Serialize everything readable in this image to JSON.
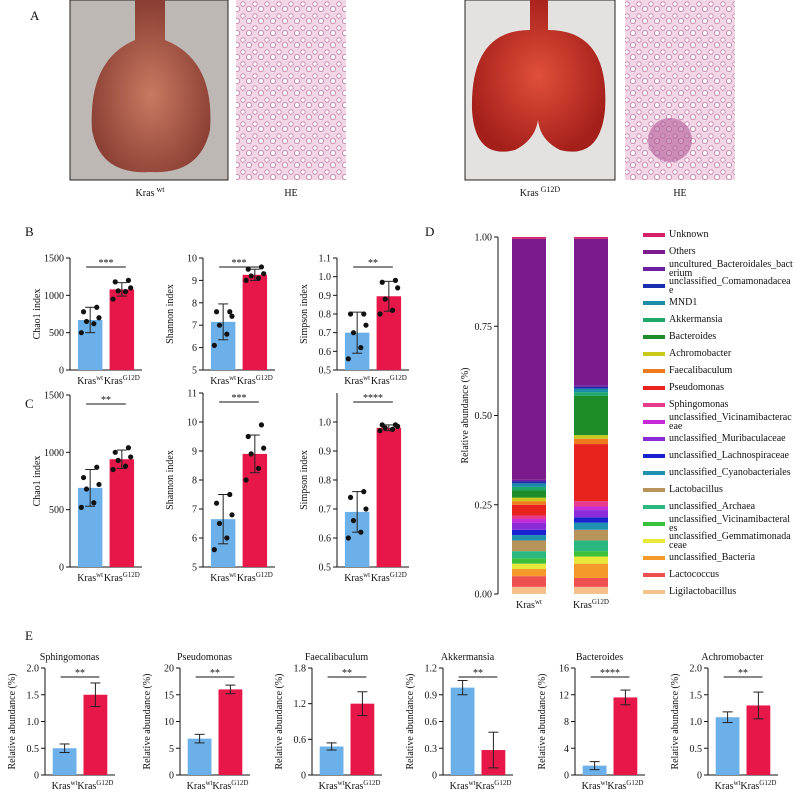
{
  "panels": [
    "A",
    "B",
    "C",
    "D",
    "E"
  ],
  "panel_a": {
    "labels": [
      {
        "name": "Kras",
        "sup": "wt"
      },
      {
        "name": "HE"
      },
      {
        "name": "Kras",
        "sup": "G12D"
      },
      {
        "name": "HE"
      }
    ]
  },
  "chart_data": [
    {
      "type": "bar",
      "ylabel": "Chao1 index",
      "categories": [
        "Kras",
        "Kras"
      ],
      "category_sups": [
        "wt",
        "G12D"
      ],
      "colors": [
        "#6cb0ea",
        "#e8174a"
      ],
      "values": [
        670,
        1080
      ],
      "errors": [
        170,
        90
      ],
      "points": [
        [
          500,
          620,
          650,
          700,
          780,
          840
        ],
        [
          950,
          1050,
          1060,
          1100,
          1180,
          1200
        ]
      ],
      "ylim": [
        0,
        1500
      ],
      "yticks": [
        0,
        500,
        1000,
        1500
      ],
      "significance": "***"
    },
    {
      "type": "bar",
      "ylabel": "Shannon index",
      "categories": [
        "Kras",
        "Kras"
      ],
      "category_sups": [
        "wt",
        "G12D"
      ],
      "colors": [
        "#6cb0ea",
        "#e8174a"
      ],
      "values": [
        7.15,
        9.25
      ],
      "errors": [
        0.8,
        0.25
      ],
      "points": [
        [
          6.1,
          6.6,
          7.0,
          7.4,
          7.6,
          7.6
        ],
        [
          9.0,
          9.1,
          9.2,
          9.3,
          9.5,
          9.6
        ]
      ],
      "ylim": [
        5,
        10
      ],
      "yticks": [
        5,
        6,
        7,
        8,
        9,
        10
      ],
      "significance": "***"
    },
    {
      "type": "bar",
      "ylabel": "Simpson index",
      "categories": [
        "Kras",
        "Kras"
      ],
      "category_sups": [
        "wt",
        "G12D"
      ],
      "colors": [
        "#6cb0ea",
        "#e8174a"
      ],
      "values": [
        0.7,
        0.895
      ],
      "errors": [
        0.11,
        0.08
      ],
      "points": [
        [
          0.56,
          0.62,
          0.7,
          0.74,
          0.8,
          0.8
        ],
        [
          0.8,
          0.82,
          0.88,
          0.94,
          0.97,
          0.98
        ]
      ],
      "ylim": [
        0.5,
        1.1
      ],
      "yticks": [
        0.5,
        0.6,
        0.7,
        0.8,
        0.9,
        {
          "value": 1,
          "label": "1.0"
        },
        1.1
      ],
      "significance": "**"
    },
    {
      "type": "bar",
      "ylabel": "Chao1 index",
      "categories": [
        "Kras",
        "Kras"
      ],
      "category_sups": [
        "wt",
        "G12D"
      ],
      "colors": [
        "#6cb0ea",
        "#e8174a"
      ],
      "values": [
        690,
        940
      ],
      "errors": [
        160,
        80
      ],
      "points": [
        [
          520,
          560,
          680,
          720,
          780,
          870
        ],
        [
          850,
          880,
          930,
          960,
          1000,
          1040
        ]
      ],
      "ylim": [
        0,
        1500
      ],
      "yticks": [
        0,
        500,
        1000,
        1500
      ],
      "significance": "**"
    },
    {
      "type": "bar",
      "ylabel": "Shannon index",
      "categories": [
        "Kras",
        "Kras"
      ],
      "category_sups": [
        "wt",
        "G12D"
      ],
      "colors": [
        "#6cb0ea",
        "#e8174a"
      ],
      "values": [
        6.65,
        8.9
      ],
      "errors": [
        0.85,
        0.65
      ],
      "points": [
        [
          5.6,
          6.0,
          6.5,
          6.8,
          7.2,
          7.5
        ],
        [
          8.0,
          8.4,
          8.9,
          9.1,
          9.5,
          9.9
        ]
      ],
      "ylim": [
        5,
        11
      ],
      "yticks": [
        5,
        6,
        7,
        8,
        9,
        10,
        11
      ],
      "significance": "***"
    },
    {
      "type": "bar",
      "ylabel": "Simpson index",
      "categories": [
        "Kras",
        "Kras"
      ],
      "category_sups": [
        "wt",
        "G12D"
      ],
      "colors": [
        "#6cb0ea",
        "#e8174a"
      ],
      "values": [
        0.69,
        0.98
      ],
      "errors": [
        0.07,
        0.01
      ],
      "points": [
        [
          0.6,
          0.62,
          0.66,
          0.7,
          0.74,
          0.76
        ],
        [
          0.97,
          0.975,
          0.98,
          0.985,
          0.99,
          0.99
        ]
      ],
      "ylim": [
        0.5,
        1.1
      ],
      "yticks": [
        0.5,
        0.6,
        0.7,
        0.8,
        0.9,
        {
          "value": 1,
          "label": "1.0"
        }
      ],
      "significance": "****"
    },
    {
      "type": "bar",
      "title": "Sphingomonas",
      "ylabel": "Relative abundance (%)",
      "categories": [
        "Kras",
        "Kras"
      ],
      "category_sups": [
        "wt",
        "G12D"
      ],
      "colors": [
        "#6cb0ea",
        "#e8174a"
      ],
      "values": [
        0.5,
        1.5
      ],
      "errors": [
        0.08,
        0.22
      ],
      "ylim": [
        0,
        2
      ],
      "yticks": [
        0,
        0.5,
        {
          "value": 1,
          "label": "1.0"
        },
        1.5,
        {
          "value": 2,
          "label": "2.0"
        }
      ],
      "significance": "**"
    },
    {
      "type": "bar",
      "title": "Pseudomonas",
      "ylabel": "Relative abundance (%)",
      "categories": [
        "Kras",
        "Kras"
      ],
      "category_sups": [
        "wt",
        "G12D"
      ],
      "colors": [
        "#6cb0ea",
        "#e8174a"
      ],
      "values": [
        6.8,
        16
      ],
      "errors": [
        0.8,
        0.8
      ],
      "ylim": [
        0,
        20
      ],
      "yticks": [
        0,
        5,
        10,
        15,
        20
      ],
      "significance": "**"
    },
    {
      "type": "bar",
      "title": "Faecalibaculum",
      "ylabel": "Relative abundance (%)",
      "categories": [
        "Kras",
        "Kras"
      ],
      "category_sups": [
        "wt",
        "G12D"
      ],
      "colors": [
        "#6cb0ea",
        "#e8174a"
      ],
      "values": [
        0.48,
        1.2
      ],
      "errors": [
        0.06,
        0.2
      ],
      "ylim": [
        0,
        1.8
      ],
      "yticks": [
        0,
        0.6,
        1.2,
        1.8
      ],
      "significance": "**"
    },
    {
      "type": "bar",
      "title": "Akkermansia",
      "ylabel": "Relative abundance (%)",
      "categories": [
        "Kras",
        "Kras"
      ],
      "category_sups": [
        "wt",
        "G12D"
      ],
      "colors": [
        "#6cb0ea",
        "#e8174a"
      ],
      "values": [
        0.98,
        0.28
      ],
      "errors": [
        0.08,
        0.2
      ],
      "ylim": [
        0,
        1.2
      ],
      "yticks": [
        0,
        0.3,
        0.6,
        0.9,
        1.2
      ],
      "significance": "**"
    },
    {
      "type": "bar",
      "title": "Bacteroides",
      "ylabel": "Relative abundance (%)",
      "categories": [
        "Kras",
        "Kras"
      ],
      "category_sups": [
        "wt",
        "G12D"
      ],
      "colors": [
        "#6cb0ea",
        "#e8174a"
      ],
      "values": [
        1.4,
        11.6
      ],
      "errors": [
        0.6,
        1.1
      ],
      "ylim": [
        0,
        16
      ],
      "yticks": [
        0,
        4,
        8,
        12,
        16
      ],
      "significance": "****"
    },
    {
      "type": "bar",
      "title": "Achromobacter",
      "ylabel": "Relative abundance (%)",
      "categories": [
        "Kras",
        "Kras"
      ],
      "category_sups": [
        "wt",
        "G12D"
      ],
      "colors": [
        "#6cb0ea",
        "#e8174a"
      ],
      "values": [
        1.08,
        1.3
      ],
      "errors": [
        0.1,
        0.25
      ],
      "ylim": [
        0,
        2
      ],
      "yticks": [
        0,
        0.5,
        {
          "value": 1,
          "label": "1.0"
        },
        1.5,
        {
          "value": 2,
          "label": "2.0"
        }
      ],
      "significance": "**"
    },
    {
      "type": "stacked_bar",
      "ylabel": "Relative abundance (%)",
      "categories": [
        "Kras",
        "Kras"
      ],
      "category_sups": [
        "wt",
        "G12D"
      ],
      "ylim": [
        0,
        1
      ],
      "yticks": [
        {
          "value": 0,
          "label": "0.00"
        },
        0.25,
        {
          "value": 0.5,
          "label": "0.50"
        },
        0.75,
        {
          "value": 1,
          "label": "1.00"
        }
      ],
      "series": [
        {
          "name": "Unknown",
          "color": "#d6206a",
          "values": [
            0.005,
            0.005
          ]
        },
        {
          "name": "Others",
          "color": "#7b1a8c",
          "values": [
            0.675,
            0.41
          ]
        },
        {
          "name": "uncultured_Bacteroidales_bacterium",
          "color": "#6a1fa0",
          "values": [
            0.005,
            0.005
          ]
        },
        {
          "name": "unclassified_Comamonadaceae",
          "color": "#1a2fb0",
          "values": [
            0.005,
            0.005
          ]
        },
        {
          "name": "MND1",
          "color": "#1a8ca8",
          "values": [
            0.01,
            0.01
          ]
        },
        {
          "name": "Akkermansia",
          "color": "#1ea86a",
          "values": [
            0.01,
            0.01
          ]
        },
        {
          "name": "Bacteroides",
          "color": "#1f8c2a",
          "values": [
            0.02,
            0.11
          ]
        },
        {
          "name": "Achromobacter",
          "color": "#c9c91c",
          "values": [
            0.01,
            0.01
          ]
        },
        {
          "name": "Faecalibaculum",
          "color": "#f07a1e",
          "values": [
            0.01,
            0.015
          ]
        },
        {
          "name": "Pseudomonas",
          "color": "#e8221c",
          "values": [
            0.03,
            0.16
          ]
        },
        {
          "name": "Sphingomonas",
          "color": "#e83a8c",
          "values": [
            0.01,
            0.015
          ]
        },
        {
          "name": "unclassified_Vicinamibacteraceae",
          "color": "#c42ad8",
          "values": [
            0.01,
            0.01
          ]
        },
        {
          "name": "unclassified_Muribaculaceae",
          "color": "#8a2ad8",
          "values": [
            0.02,
            0.02
          ]
        },
        {
          "name": "unclassified_Lachnospiraceae",
          "color": "#1a22d0",
          "values": [
            0.015,
            0.015
          ]
        },
        {
          "name": "unclassified_Cyanobacteriales",
          "color": "#1e90b0",
          "values": [
            0.015,
            0.02
          ]
        },
        {
          "name": "Lactobacillus",
          "color": "#b8935a",
          "values": [
            0.03,
            0.03
          ]
        },
        {
          "name": "unclassified_Archaea",
          "color": "#2ab880",
          "values": [
            0.02,
            0.03
          ]
        },
        {
          "name": "unclassified_Vicinamibacterales",
          "color": "#3ac03a",
          "values": [
            0.015,
            0.015
          ]
        },
        {
          "name": "unclassified_Gemmatimonadaceae",
          "color": "#e8e83a",
          "values": [
            0.015,
            0.02
          ]
        },
        {
          "name": "unclassified_Bacteria",
          "color": "#f59a2a",
          "values": [
            0.02,
            0.04
          ]
        },
        {
          "name": "Lactococcus",
          "color": "#ee5050",
          "values": [
            0.03,
            0.025
          ]
        },
        {
          "name": "Ligilactobacillus",
          "color": "#f5c08a",
          "values": [
            0.02,
            0.02
          ]
        }
      ]
    }
  ]
}
